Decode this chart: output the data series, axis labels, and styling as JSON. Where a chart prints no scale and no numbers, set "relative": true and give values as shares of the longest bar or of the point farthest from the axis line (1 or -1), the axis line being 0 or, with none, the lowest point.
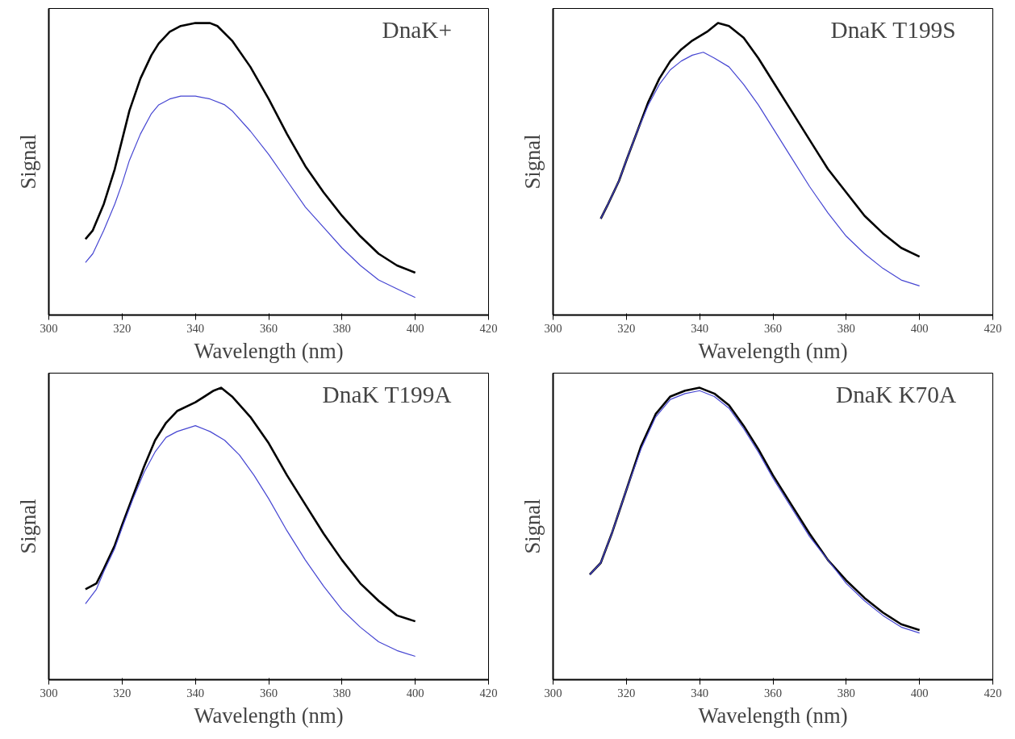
{
  "chart_data": [
    {
      "type": "line",
      "title": "DnaK+",
      "xlabel": "Wavelength (nm)",
      "ylabel": "Signal",
      "relative": true,
      "xlim": [
        300,
        420
      ],
      "xticks": [
        300,
        320,
        340,
        360,
        380,
        400,
        420
      ],
      "tick_labels": "x",
      "grid": false,
      "series": [
        {
          "color": "#000000",
          "x": [
            310,
            312,
            315,
            318,
            320,
            322,
            325,
            328,
            330,
            333,
            336,
            340,
            344,
            346,
            350,
            355,
            360,
            365,
            370,
            375,
            380,
            385,
            390,
            395,
            400
          ],
          "values": [
            0.26,
            0.29,
            0.38,
            0.5,
            0.6,
            0.7,
            0.81,
            0.89,
            0.93,
            0.97,
            0.99,
            1.0,
            1.0,
            0.99,
            0.94,
            0.85,
            0.74,
            0.62,
            0.51,
            0.42,
            0.34,
            0.27,
            0.21,
            0.17,
            0.145
          ]
        },
        {
          "color": "#4646d2",
          "x": [
            310,
            312,
            315,
            318,
            320,
            322,
            325,
            328,
            330,
            333,
            336,
            340,
            344,
            348,
            350,
            355,
            360,
            365,
            370,
            375,
            380,
            385,
            390,
            395,
            400
          ],
          "values": [
            0.18,
            0.21,
            0.29,
            0.38,
            0.45,
            0.53,
            0.62,
            0.69,
            0.72,
            0.74,
            0.75,
            0.75,
            0.74,
            0.72,
            0.7,
            0.63,
            0.55,
            0.46,
            0.37,
            0.3,
            0.23,
            0.17,
            0.12,
            0.09,
            0.06
          ]
        }
      ]
    },
    {
      "type": "line",
      "title": "DnaK T199S",
      "xlabel": "Wavelength (nm)",
      "ylabel": "Signal",
      "relative": true,
      "xlim": [
        300,
        420
      ],
      "xticks": [
        300,
        320,
        340,
        360,
        380,
        400,
        420
      ],
      "tick_labels": "x",
      "grid": false,
      "series": [
        {
          "color": "#000000",
          "x": [
            313,
            315,
            318,
            320,
            323,
            326,
            329,
            332,
            335,
            338,
            342,
            345,
            348,
            352,
            356,
            360,
            365,
            370,
            375,
            380,
            385,
            390,
            395,
            400
          ],
          "values": [
            0.33,
            0.38,
            0.46,
            0.53,
            0.63,
            0.73,
            0.81,
            0.87,
            0.91,
            0.94,
            0.97,
            1.0,
            0.99,
            0.95,
            0.88,
            0.8,
            0.7,
            0.6,
            0.5,
            0.42,
            0.34,
            0.28,
            0.23,
            0.2
          ]
        },
        {
          "color": "#4646d2",
          "x": [
            313,
            315,
            318,
            320,
            323,
            326,
            329,
            332,
            335,
            338,
            341,
            344,
            348,
            352,
            356,
            360,
            365,
            370,
            375,
            380,
            385,
            390,
            395,
            400
          ],
          "values": [
            0.33,
            0.38,
            0.46,
            0.53,
            0.63,
            0.72,
            0.79,
            0.84,
            0.87,
            0.89,
            0.9,
            0.88,
            0.85,
            0.79,
            0.72,
            0.64,
            0.54,
            0.44,
            0.35,
            0.27,
            0.21,
            0.16,
            0.12,
            0.1
          ]
        }
      ]
    },
    {
      "type": "line",
      "title": "DnaK T199A",
      "xlabel": "Wavelength (nm)",
      "ylabel": "Signal",
      "relative": true,
      "xlim": [
        300,
        420
      ],
      "xticks": [
        300,
        320,
        340,
        360,
        380,
        400,
        420
      ],
      "tick_labels": "x",
      "grid": false,
      "series": [
        {
          "color": "#000000",
          "x": [
            310,
            313,
            315,
            318,
            320,
            323,
            326,
            329,
            332,
            335,
            340,
            345,
            347,
            350,
            355,
            360,
            365,
            370,
            375,
            380,
            385,
            390,
            395,
            400
          ],
          "values": [
            0.31,
            0.33,
            0.38,
            0.46,
            0.53,
            0.63,
            0.73,
            0.82,
            0.88,
            0.92,
            0.95,
            0.99,
            1.0,
            0.97,
            0.9,
            0.81,
            0.7,
            0.6,
            0.5,
            0.41,
            0.33,
            0.27,
            0.22,
            0.2
          ]
        },
        {
          "color": "#4646d2",
          "x": [
            310,
            313,
            315,
            318,
            320,
            323,
            326,
            329,
            332,
            335,
            340,
            344,
            348,
            352,
            356,
            360,
            365,
            370,
            375,
            380,
            385,
            390,
            395,
            400
          ],
          "values": [
            0.26,
            0.31,
            0.37,
            0.45,
            0.52,
            0.62,
            0.71,
            0.78,
            0.83,
            0.85,
            0.87,
            0.85,
            0.82,
            0.77,
            0.7,
            0.62,
            0.51,
            0.41,
            0.32,
            0.24,
            0.18,
            0.13,
            0.1,
            0.08
          ]
        }
      ]
    },
    {
      "type": "line",
      "title": "DnaK K70A",
      "xlabel": "Wavelength (nm)",
      "ylabel": "Signal",
      "relative": true,
      "xlim": [
        300,
        420
      ],
      "xticks": [
        300,
        320,
        340,
        360,
        380,
        400,
        420
      ],
      "tick_labels": "x",
      "grid": false,
      "series": [
        {
          "color": "#000000",
          "x": [
            310,
            313,
            316,
            320,
            324,
            328,
            332,
            336,
            340,
            344,
            348,
            352,
            356,
            360,
            365,
            370,
            375,
            380,
            385,
            390,
            395,
            400
          ],
          "values": [
            0.36,
            0.4,
            0.5,
            0.65,
            0.8,
            0.91,
            0.97,
            0.99,
            1.0,
            0.98,
            0.94,
            0.87,
            0.79,
            0.7,
            0.6,
            0.5,
            0.41,
            0.34,
            0.28,
            0.23,
            0.19,
            0.17
          ]
        },
        {
          "color": "#4646d2",
          "x": [
            310,
            313,
            316,
            320,
            324,
            328,
            332,
            336,
            340,
            344,
            348,
            352,
            356,
            360,
            365,
            370,
            375,
            380,
            385,
            390,
            395,
            400
          ],
          "values": [
            0.36,
            0.4,
            0.5,
            0.65,
            0.79,
            0.9,
            0.96,
            0.98,
            0.99,
            0.97,
            0.93,
            0.86,
            0.78,
            0.69,
            0.59,
            0.49,
            0.41,
            0.33,
            0.27,
            0.22,
            0.18,
            0.16
          ]
        }
      ]
    }
  ]
}
